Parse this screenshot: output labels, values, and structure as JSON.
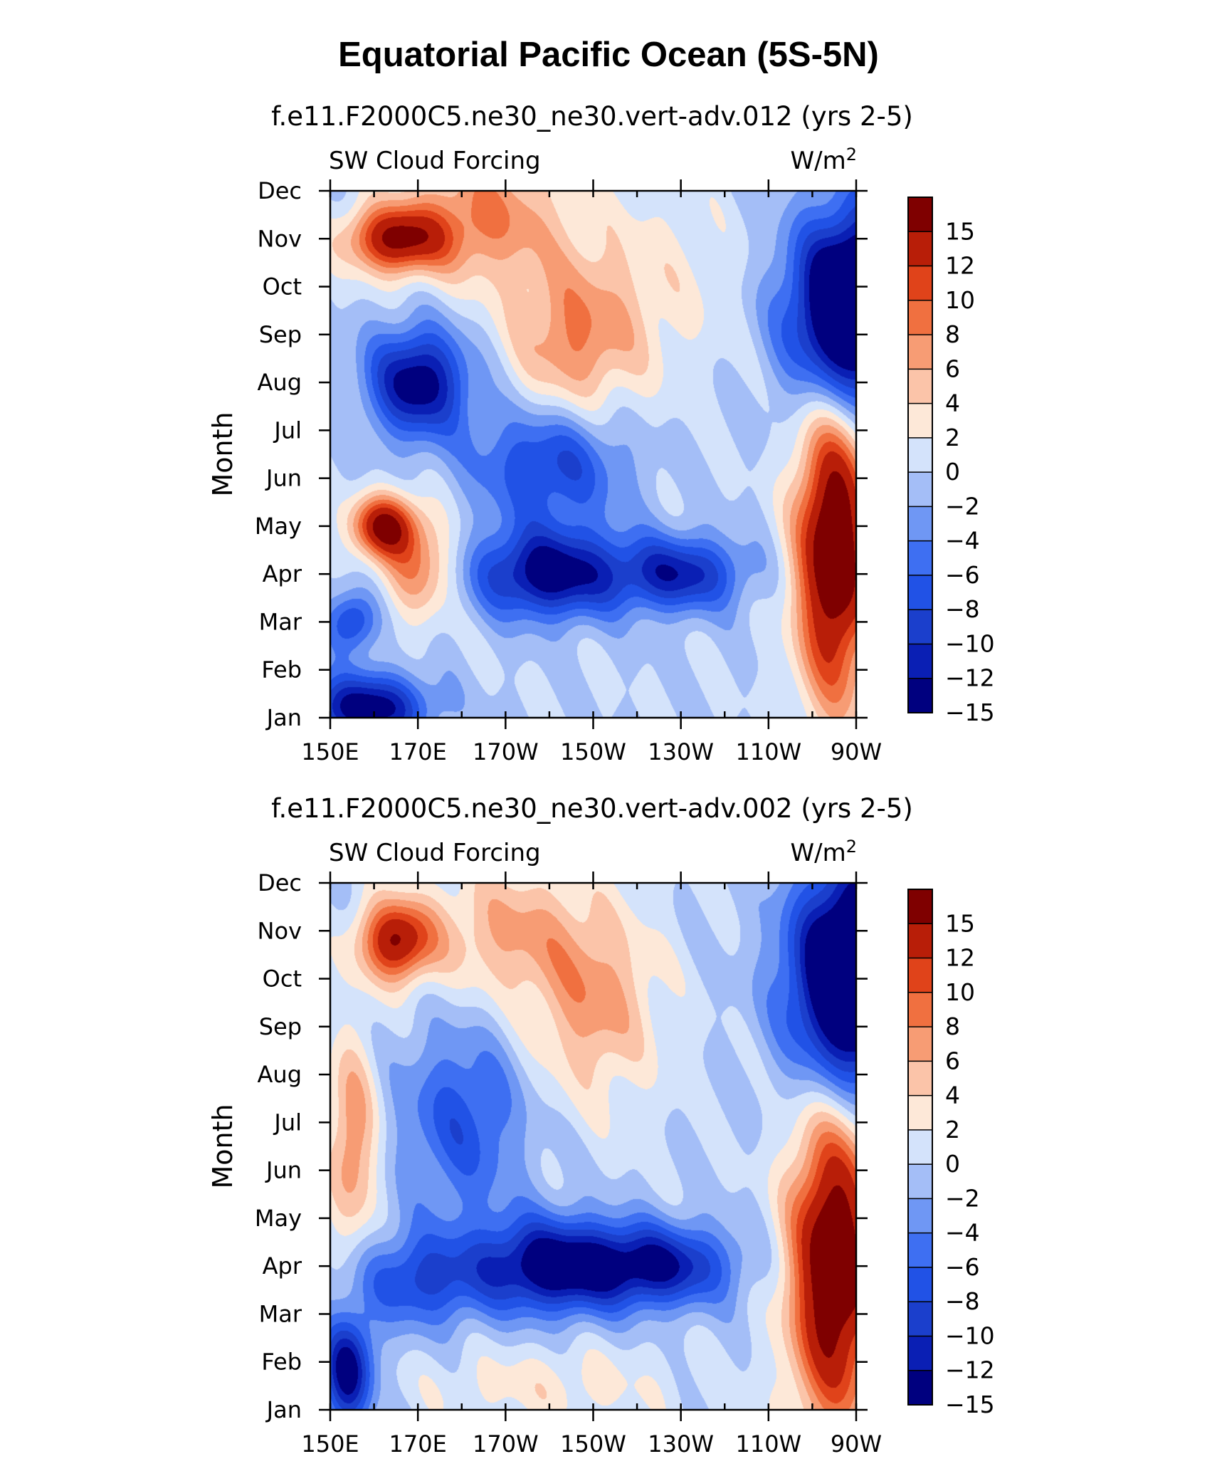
{
  "figure_title": "Equatorial Pacific Ocean (5S-5N)",
  "chart_data": [
    {
      "type": "heatmap",
      "title": "f.e11.F2000C5.ne30_ne30.vert-adv.012 (yrs 2-5)",
      "left_label": "SW Cloud Forcing",
      "right_label": "W/m",
      "right_label_sup": "2",
      "ylabel": "Month",
      "xlabel": "",
      "x_ticks": [
        "150E",
        "170E",
        "170W",
        "150W",
        "130W",
        "110W",
        "90W"
      ],
      "y_ticks": [
        "Jan",
        "Feb",
        "Mar",
        "Apr",
        "May",
        "Jun",
        "Jul",
        "Aug",
        "Sep",
        "Oct",
        "Nov",
        "Dec"
      ],
      "x_range_deg_east": [
        150,
        270
      ],
      "colorbar_labels": [
        "15",
        "12",
        "10",
        "8",
        "6",
        "4",
        "2",
        "0",
        "−2",
        "−4",
        "−6",
        "−8",
        "−10",
        "−12",
        "−15"
      ],
      "levels": [
        -15,
        -12,
        -10,
        -8,
        -6,
        -4,
        -2,
        0,
        2,
        4,
        6,
        8,
        10,
        12,
        15
      ],
      "features": [
        {
          "lon": 158,
          "month": 0.2,
          "value": -14,
          "slon": 10,
          "smon": 0.5
        },
        {
          "lon": 155,
          "month": 2.0,
          "value": -9,
          "slon": 4,
          "smon": 0.45
        },
        {
          "lon": 162,
          "month": 4.0,
          "value": 15,
          "slon": 5,
          "smon": 0.45
        },
        {
          "lon": 170,
          "month": 3.2,
          "value": 8,
          "slon": 6,
          "smon": 0.8
        },
        {
          "lon": 200,
          "month": 3.0,
          "value": -14,
          "slon": 12,
          "smon": 0.65
        },
        {
          "lon": 230,
          "month": 3.0,
          "value": -11,
          "slon": 10,
          "smon": 0.55
        },
        {
          "lon": 200,
          "month": 5.3,
          "value": -9,
          "slon": 12,
          "smon": 0.9
        },
        {
          "lon": 170,
          "month": 7.0,
          "value": -14,
          "slon": 8,
          "smon": 0.8
        },
        {
          "lon": 265,
          "month": 3.5,
          "value": 20,
          "slon": 6,
          "smon": 2.2
        },
        {
          "lon": 270,
          "month": 8.5,
          "value": -24,
          "slon": 10,
          "smon": 1.4
        },
        {
          "lon": 165,
          "month": 10.0,
          "value": 15,
          "slon": 8,
          "smon": 0.5
        },
        {
          "lon": 185,
          "month": 10.5,
          "value": 8,
          "slon": 12,
          "smon": 1.0
        },
        {
          "lon": 205,
          "month": 7.8,
          "value": 7,
          "slon": 10,
          "smon": 1.2
        },
        {
          "lon": 220,
          "month": 9.0,
          "value": 3,
          "slon": 15,
          "smon": 1.5
        }
      ]
    },
    {
      "type": "heatmap",
      "title": "f.e11.F2000C5.ne30_ne30.vert-adv.002 (yrs 2-5)",
      "left_label": "SW Cloud Forcing",
      "right_label": "W/m",
      "right_label_sup": "2",
      "ylabel": "Month",
      "xlabel": "",
      "x_ticks": [
        "150E",
        "170E",
        "170W",
        "150W",
        "130W",
        "110W",
        "90W"
      ],
      "y_ticks": [
        "Jan",
        "Feb",
        "Mar",
        "Apr",
        "May",
        "Jun",
        "Jul",
        "Aug",
        "Sep",
        "Oct",
        "Nov",
        "Dec"
      ],
      "x_range_deg_east": [
        150,
        270
      ],
      "colorbar_labels": [
        "15",
        "12",
        "10",
        "8",
        "6",
        "4",
        "2",
        "0",
        "−2",
        "−4",
        "−6",
        "−8",
        "−10",
        "−12",
        "−15"
      ],
      "levels": [
        -15,
        -12,
        -10,
        -8,
        -6,
        -4,
        -2,
        0,
        2,
        4,
        6,
        8,
        10,
        12,
        15
      ],
      "features": [
        {
          "lon": 154,
          "month": 0.8,
          "value": -14,
          "slon": 4,
          "smon": 0.8
        },
        {
          "lon": 170,
          "month": 2.7,
          "value": -8,
          "slon": 10,
          "smon": 0.7
        },
        {
          "lon": 155,
          "month": 5.6,
          "value": 8,
          "slon": 4,
          "smon": 1.5
        },
        {
          "lon": 165,
          "month": 9.8,
          "value": 15,
          "slon": 6,
          "smon": 0.6
        },
        {
          "lon": 190,
          "month": 10.0,
          "value": 6,
          "slon": 12,
          "smon": 1.0
        },
        {
          "lon": 200,
          "month": 3.0,
          "value": -14,
          "slon": 12,
          "smon": 0.7
        },
        {
          "lon": 225,
          "month": 3.0,
          "value": -12,
          "slon": 12,
          "smon": 0.6
        },
        {
          "lon": 180,
          "month": 6.0,
          "value": -7,
          "slon": 10,
          "smon": 1.4
        },
        {
          "lon": 210,
          "month": 8.5,
          "value": 7,
          "slon": 10,
          "smon": 1.4
        },
        {
          "lon": 265,
          "month": 3.0,
          "value": 20,
          "slon": 7,
          "smon": 2.3
        },
        {
          "lon": 270,
          "month": 9.0,
          "value": -24,
          "slon": 10,
          "smon": 1.6
        },
        {
          "lon": 200,
          "month": 0.5,
          "value": 3,
          "slon": 20,
          "smon": 0.6
        }
      ]
    }
  ],
  "colorbar_colors": [
    "#00007f",
    "#0a1fb4",
    "#1b3fcc",
    "#2152e6",
    "#3e6ff2",
    "#6f97f4",
    "#a4bef7",
    "#d4e3fb",
    "#fde8d8",
    "#fbc4a9",
    "#f79c74",
    "#f07040",
    "#e0431a",
    "#b81e08",
    "#7f0000"
  ]
}
